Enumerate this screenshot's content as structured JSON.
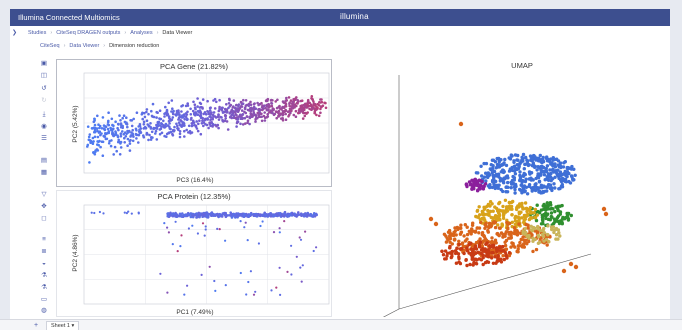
{
  "app": {
    "title": "Illumina Connected Multiomics",
    "brand": "illumina"
  },
  "breadcrumb": [
    "Studies",
    "CiteSeq DRAGEN outputs",
    "Analyses",
    "Data Viewer"
  ],
  "sub_breadcrumb": [
    "CiteSeq",
    "Data Viewer",
    "Dimension reduction"
  ],
  "toolbar_icons": [
    "save-icon",
    "layers-icon",
    "refresh-icon",
    "redo-icon",
    "download-icon",
    "camera-icon",
    "sliders-icon",
    "document-icon",
    "box-icon",
    "filter-icon",
    "brush-icon",
    "select-icon",
    "list-icon",
    "list-alt-icon",
    "car-icon",
    "flask-icon",
    "flask-alt-icon",
    "bar-icon",
    "globe-icon"
  ],
  "bottom": {
    "sheet_label": "Sheet 1 ▾",
    "add_label": "+"
  },
  "colors": {
    "titlebar": "#3d4f8f",
    "accent": "#4a5aa8"
  },
  "chart_data": [
    {
      "type": "scatter",
      "title": "PCA Gene (21.82%)",
      "xlabel": "PC3 (16.4%)",
      "ylabel": "PC2 (5.42%)",
      "grid": true,
      "color_gradient": [
        "#4d7cf2",
        "#6f5ed4",
        "#b63d7a"
      ]
    },
    {
      "type": "scatter",
      "title": "PCA Protein (12.35%)",
      "xlabel": "PC1 (7.49%)",
      "ylabel": "PC2 (4.86%)",
      "grid": true,
      "color_gradient": [
        "#4d7cf2",
        "#6f5ed4",
        "#b63d7a"
      ]
    },
    {
      "type": "scatter",
      "title": "UMAP",
      "xlabel": "",
      "ylabel": "",
      "grid": false,
      "cluster_colors": [
        "#3f6fd6",
        "#8b1f9c",
        "#2f8f2f",
        "#d8a21a",
        "#d9641a",
        "#c83a14",
        "#c9b45a"
      ]
    }
  ]
}
